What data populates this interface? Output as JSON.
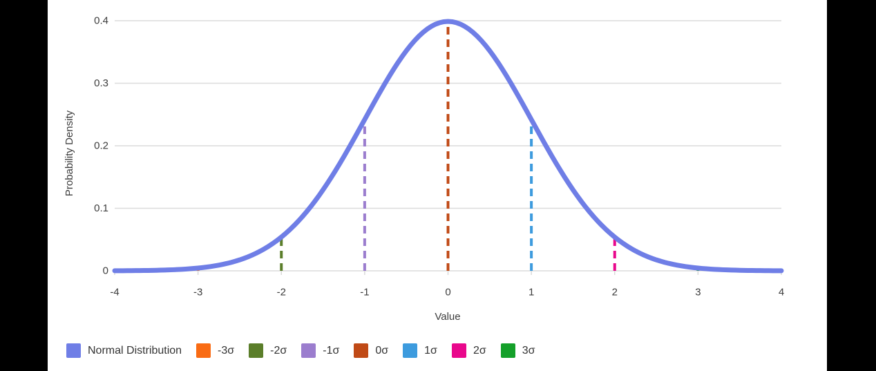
{
  "chart_data": {
    "type": "line",
    "title": "",
    "xlabel": "Value",
    "ylabel": "Probability Density",
    "xlim": [
      -4,
      4
    ],
    "ylim": [
      0,
      0.4
    ],
    "x_ticks": [
      -4,
      -3,
      -2,
      -1,
      0,
      1,
      2,
      3,
      4
    ],
    "y_ticks": [
      0,
      0.1,
      0.2,
      0.3,
      0.4
    ],
    "y_tick_labels": [
      "0",
      "0.1",
      "0.2",
      "0.3",
      "0.4"
    ],
    "grid": "horizontal",
    "legend_position": "bottom",
    "series": [
      {
        "name": "Normal Distribution",
        "type": "gaussian-curve",
        "mean": 0,
        "std": 1,
        "peak_density": 0.3989,
        "color": "#6F7EE6",
        "stroke_width": 7
      }
    ],
    "sigma_lines": [
      {
        "label": "-3σ",
        "x": -3,
        "top_density": 0.0044,
        "color": "#F96B13"
      },
      {
        "label": "-2σ",
        "x": -2,
        "top_density": 0.054,
        "color": "#5B7E2A"
      },
      {
        "label": "-1σ",
        "x": -1,
        "top_density": 0.242,
        "color": "#9B7DCE"
      },
      {
        "label": "0σ",
        "x": 0,
        "top_density": 0.3989,
        "color": "#C04A16"
      },
      {
        "label": "1σ",
        "x": 1,
        "top_density": 0.242,
        "color": "#3D9BDE"
      },
      {
        "label": "2σ",
        "x": 2,
        "top_density": 0.054,
        "color": "#E9088C"
      },
      {
        "label": "3σ",
        "x": 3,
        "top_density": 0.0044,
        "color": "#14A02A"
      }
    ],
    "legend": [
      {
        "label": "Normal Distribution",
        "color": "#6F7EE6"
      },
      {
        "label": "-3σ",
        "color": "#F96B13"
      },
      {
        "label": "-2σ",
        "color": "#5B7E2A"
      },
      {
        "label": "-1σ",
        "color": "#9B7DCE"
      },
      {
        "label": "0σ",
        "color": "#C04A16"
      },
      {
        "label": "1σ",
        "color": "#3D9BDE"
      },
      {
        "label": "2σ",
        "color": "#E9088C"
      },
      {
        "label": "3σ",
        "color": "#14A02A"
      }
    ]
  },
  "colors": {
    "background_bars": "#000000",
    "plot_background": "#ffffff",
    "gridline": "#DCDCDC",
    "tick_mark": "#D9D9D9",
    "axis_text": "#3C3C3C",
    "legend_text": "#333333"
  }
}
